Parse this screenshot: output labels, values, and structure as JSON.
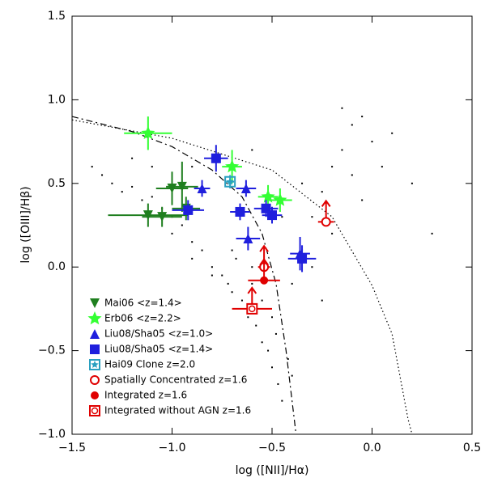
{
  "chart_data": {
    "type": "scatter",
    "xlabel": "log ([NII]/Hα)",
    "ylabel": "log ([OIII]/Hβ)",
    "xlim": [
      -1.5,
      0.5
    ],
    "ylim": [
      -1.0,
      1.5
    ],
    "xticks": [
      {
        "value": -1.5,
        "label": "−1.5"
      },
      {
        "value": -1.0,
        "label": "−1.0"
      },
      {
        "value": -0.5,
        "label": "−0.5"
      },
      {
        "value": 0.0,
        "label": "0.0"
      },
      0.5
    ],
    "yticks": [
      {
        "value": -1.0,
        "label": "−1.0"
      },
      {
        "value": -0.5,
        "label": "−0.5"
      },
      {
        "value": 0.0,
        "label": "0.0"
      },
      0.5,
      {
        "value": 1.0,
        "label": "1.0"
      },
      1.5
    ],
    "legend": "lower left",
    "background": {
      "color": "#000000",
      "x": [
        -1.35,
        -1.3,
        -1.25,
        -1.2,
        -1.15,
        -1.1,
        -1.05,
        -1.0,
        -1.0,
        -0.95,
        -0.9,
        -0.9,
        -0.85,
        -0.8,
        -0.8,
        -0.75,
        -0.72,
        -0.7,
        -0.68,
        -0.65,
        -0.62,
        -0.6,
        -0.58,
        -0.55,
        -0.55,
        -0.52,
        -0.5,
        -0.48,
        -0.47,
        -0.45,
        -0.42,
        -0.5,
        -0.4,
        -0.6,
        -0.7,
        -0.4,
        -0.35,
        -0.3,
        -0.25,
        -0.2,
        -0.15,
        -0.1,
        -0.05,
        -0.1,
        0.0,
        0.05,
        -0.05,
        -0.2,
        -0.15,
        0.1,
        0.2,
        -0.3,
        -0.25,
        -1.4,
        -1.2,
        -0.9,
        -0.6,
        -0.35,
        -0.45,
        -1.1,
        0.3
      ],
      "y": [
        0.55,
        0.5,
        0.45,
        0.48,
        0.4,
        0.42,
        0.35,
        0.3,
        0.2,
        0.25,
        0.15,
        0.05,
        0.1,
        0.0,
        -0.05,
        -0.05,
        -0.1,
        -0.15,
        0.05,
        -0.2,
        -0.3,
        -0.1,
        -0.35,
        -0.45,
        -0.2,
        -0.5,
        -0.6,
        -0.4,
        -0.7,
        -0.8,
        -0.55,
        -0.3,
        -0.65,
        0.0,
        0.1,
        -0.1,
        0.1,
        0.3,
        0.45,
        0.6,
        0.7,
        0.85,
        0.9,
        0.55,
        0.75,
        0.6,
        0.4,
        0.2,
        0.95,
        0.8,
        0.5,
        0.0,
        -0.2,
        0.6,
        0.65,
        0.6,
        0.7,
        0.5,
        0.3,
        0.6,
        0.2
      ]
    },
    "lines": [
      {
        "style": "dashed",
        "x": [
          -1.5,
          -1.2,
          -1.0,
          -0.8,
          -0.65,
          -0.55,
          -0.48,
          -0.43,
          -0.38
        ],
        "y": [
          0.9,
          0.81,
          0.72,
          0.58,
          0.42,
          0.2,
          -0.1,
          -0.5,
          -1.0
        ]
      },
      {
        "style": "dotted",
        "x": [
          -1.5,
          -1.0,
          -0.5,
          -0.2,
          0.0,
          0.1,
          0.18,
          0.2
        ],
        "y": [
          0.88,
          0.77,
          0.58,
          0.3,
          -0.11,
          -0.4,
          -0.91,
          -1.0
        ]
      }
    ],
    "series": [
      {
        "name": "Mai06 <z=1.4>",
        "color": "#1f7f1f",
        "marker": "tri-down",
        "x": [
          -1.12,
          -1.05,
          -1.0,
          -0.95,
          -0.93
        ],
        "values": [
          0.31,
          0.3,
          0.47,
          0.48,
          0.35
        ],
        "xerr": [
          0.2,
          0.1,
          0.08,
          0.08,
          0.07
        ],
        "yerr": [
          0.07,
          0.06,
          0.1,
          0.15,
          0.07
        ]
      },
      {
        "name": "Erb06 <z=2.2>",
        "color": "#33ff33",
        "marker": "star",
        "x": [
          -1.12,
          -0.7,
          -0.52,
          -0.46
        ],
        "values": [
          0.8,
          0.6,
          0.42,
          0.4
        ],
        "xerr": [
          0.12,
          0.05,
          0.05,
          0.06
        ],
        "yerr": [
          0.1,
          0.1,
          0.07,
          0.07
        ]
      },
      {
        "name": "Liu08/Sha05 <z=1.0>",
        "color": "#1f1fdd",
        "marker": "tri-up",
        "x": [
          -0.85,
          -0.63,
          -0.62,
          -0.36
        ],
        "values": [
          0.47,
          0.47,
          0.17,
          0.08
        ],
        "xerr": [
          0.04,
          0.05,
          0.06,
          0.05
        ],
        "yerr": [
          0.05,
          0.05,
          0.07,
          0.1
        ]
      },
      {
        "name": "Liu08/Sha05 <z=1.4>",
        "color": "#1f1fdd",
        "marker": "square",
        "x": [
          -0.78,
          -0.92,
          -0.66,
          -0.53,
          -0.5,
          -0.35
        ],
        "values": [
          0.65,
          0.34,
          0.33,
          0.35,
          0.31,
          0.05
        ],
        "xerr": [
          0.06,
          0.08,
          0.05,
          0.06,
          0.05,
          0.07
        ],
        "yerr": [
          0.08,
          0.06,
          0.05,
          0.05,
          0.05,
          0.08
        ]
      },
      {
        "name": "Hai09 Clone z=2.0",
        "color": "#2aa0c0",
        "marker": "square-star",
        "x": [
          -0.71
        ],
        "values": [
          0.51
        ],
        "xerr": [
          0.02
        ],
        "yerr": [
          0.04
        ]
      },
      {
        "name": "Spatially Concentrated z=1.6",
        "color": "#e00000",
        "marker": "circle-open",
        "lower_limit": true,
        "x": [
          -0.23,
          -0.54
        ],
        "values": [
          0.27,
          0.0
        ],
        "xerr": [
          0.04,
          0.03
        ],
        "yerr": [
          0.0,
          0.0
        ]
      },
      {
        "name": "Integrated z=1.6",
        "color": "#e00000",
        "marker": "circle",
        "lower_limit": true,
        "x": [
          -0.54
        ],
        "values": [
          -0.08
        ],
        "xerr": [
          0.08
        ],
        "yerr": [
          0.0
        ]
      },
      {
        "name": "Integrated without AGN z=1.6",
        "color": "#e00000",
        "marker": "circle-square",
        "lower_limit": true,
        "x": [
          -0.6
        ],
        "values": [
          -0.25
        ],
        "xerr": [
          0.1
        ],
        "yerr": [
          0.0
        ]
      }
    ]
  }
}
